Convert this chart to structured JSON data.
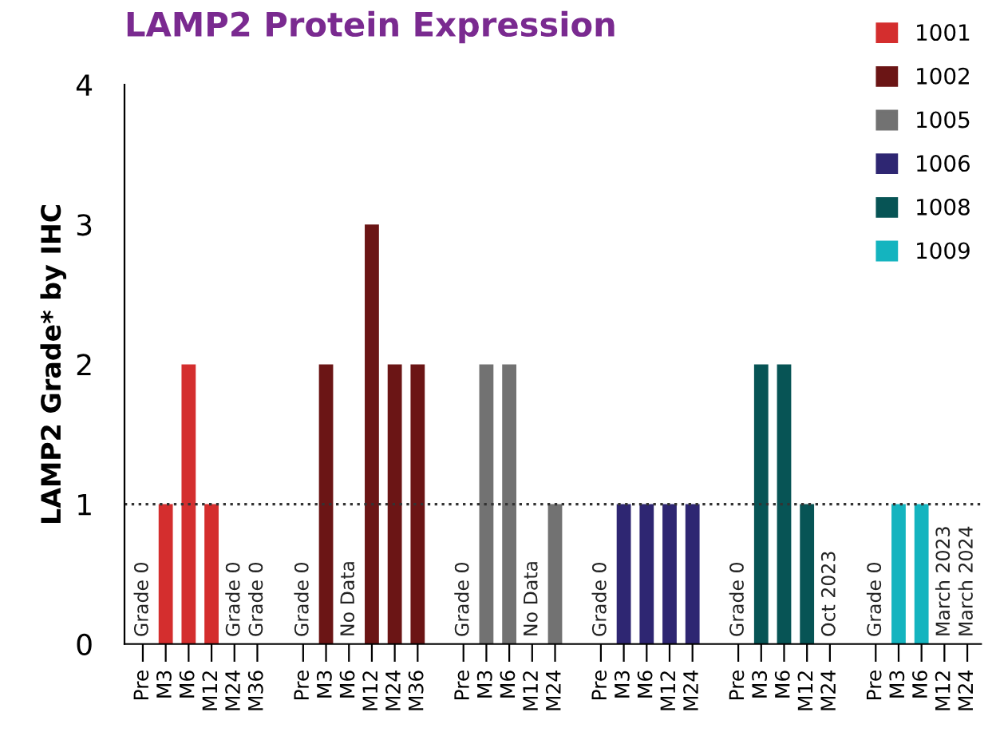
{
  "chart_data": {
    "type": "bar",
    "title": "LAMP2 Protein Expression",
    "ylabel": "LAMP2 Grade* by IHC",
    "categories": [
      "Pre",
      "M3",
      "M6",
      "M12",
      "M24",
      "M36",
      null,
      "Pre",
      "M3",
      "M6",
      "M12",
      "M24",
      "M36",
      null,
      "Pre",
      "M3",
      "M6",
      "M12",
      "M24",
      null,
      "Pre",
      "M3",
      "M6",
      "M12",
      "M24",
      null,
      "Pre",
      "M3",
      "M6",
      "M12",
      "M24",
      null,
      "Pre",
      "M3",
      "M6",
      "M12",
      "M24"
    ],
    "series": [
      {
        "name": "1001",
        "color": "#d42e2e",
        "values": [
          0,
          1,
          2,
          1,
          0,
          0,
          null,
          null,
          null,
          null,
          null,
          null,
          null,
          null,
          null,
          null,
          null,
          null,
          null,
          null,
          null,
          null,
          null,
          null,
          null,
          null,
          null,
          null,
          null,
          null,
          null,
          null,
          null,
          null,
          null,
          null,
          null
        ],
        "value_labels": [
          "Grade 0",
          null,
          null,
          null,
          "Grade 0",
          "Grade 0",
          null,
          null,
          null,
          null,
          null,
          null,
          null,
          null,
          null,
          null,
          null,
          null,
          null,
          null,
          null,
          null,
          null,
          null,
          null,
          null,
          null,
          null,
          null,
          null,
          null,
          null,
          null,
          null,
          null,
          null,
          null
        ]
      },
      {
        "name": "1002",
        "color": "#6b1515",
        "values": [
          null,
          null,
          null,
          null,
          null,
          null,
          null,
          0,
          2,
          null,
          3,
          2,
          2,
          null,
          null,
          null,
          null,
          null,
          null,
          null,
          null,
          null,
          null,
          null,
          null,
          null,
          null,
          null,
          null,
          null,
          null,
          null,
          null,
          null,
          null,
          null,
          null
        ],
        "value_labels": [
          null,
          null,
          null,
          null,
          null,
          null,
          null,
          "Grade 0",
          null,
          "No Data",
          null,
          null,
          null,
          null,
          null,
          null,
          null,
          null,
          null,
          null,
          null,
          null,
          null,
          null,
          null,
          null,
          null,
          null,
          null,
          null,
          null,
          null,
          null,
          null,
          null,
          null,
          null
        ]
      },
      {
        "name": "1005",
        "color": "#727272",
        "values": [
          null,
          null,
          null,
          null,
          null,
          null,
          null,
          null,
          null,
          null,
          null,
          null,
          null,
          null,
          0,
          2,
          2,
          null,
          1,
          null,
          null,
          null,
          null,
          null,
          null,
          null,
          null,
          null,
          null,
          null,
          null,
          null,
          null,
          null,
          null,
          null,
          null
        ],
        "value_labels": [
          null,
          null,
          null,
          null,
          null,
          null,
          null,
          null,
          null,
          null,
          null,
          null,
          null,
          null,
          "Grade 0",
          null,
          null,
          "No Data",
          null,
          null,
          null,
          null,
          null,
          null,
          null,
          null,
          null,
          null,
          null,
          null,
          null,
          null,
          null,
          null,
          null,
          null,
          null
        ]
      },
      {
        "name": "1006",
        "color": "#2e2672",
        "values": [
          null,
          null,
          null,
          null,
          null,
          null,
          null,
          null,
          null,
          null,
          null,
          null,
          null,
          null,
          null,
          null,
          null,
          null,
          null,
          null,
          0,
          1,
          1,
          1,
          1,
          null,
          null,
          null,
          null,
          null,
          null,
          null,
          null,
          null,
          null,
          null,
          null
        ],
        "value_labels": [
          null,
          null,
          null,
          null,
          null,
          null,
          null,
          null,
          null,
          null,
          null,
          null,
          null,
          null,
          null,
          null,
          null,
          null,
          null,
          null,
          "Grade 0",
          null,
          null,
          null,
          null,
          null,
          null,
          null,
          null,
          null,
          null,
          null,
          null,
          null,
          null,
          null,
          null
        ]
      },
      {
        "name": "1008",
        "color": "#075455",
        "values": [
          null,
          null,
          null,
          null,
          null,
          null,
          null,
          null,
          null,
          null,
          null,
          null,
          null,
          null,
          null,
          null,
          null,
          null,
          null,
          null,
          null,
          null,
          null,
          null,
          null,
          null,
          0,
          2,
          2,
          1,
          null,
          null,
          null,
          null,
          null,
          null,
          null
        ],
        "value_labels": [
          null,
          null,
          null,
          null,
          null,
          null,
          null,
          null,
          null,
          null,
          null,
          null,
          null,
          null,
          null,
          null,
          null,
          null,
          null,
          null,
          null,
          null,
          null,
          null,
          null,
          null,
          "Grade 0",
          null,
          null,
          null,
          "Oct 2023",
          null,
          null,
          null,
          null,
          null,
          null
        ]
      },
      {
        "name": "1009",
        "color": "#14b4bf",
        "values": [
          null,
          null,
          null,
          null,
          null,
          null,
          null,
          null,
          null,
          null,
          null,
          null,
          null,
          null,
          null,
          null,
          null,
          null,
          null,
          null,
          null,
          null,
          null,
          null,
          null,
          null,
          null,
          null,
          null,
          null,
          null,
          null,
          0,
          1,
          1,
          null,
          null
        ],
        "value_labels": [
          null,
          null,
          null,
          null,
          null,
          null,
          null,
          null,
          null,
          null,
          null,
          null,
          null,
          null,
          null,
          null,
          null,
          null,
          null,
          null,
          null,
          null,
          null,
          null,
          null,
          null,
          null,
          null,
          null,
          null,
          null,
          null,
          "Grade 0",
          null,
          null,
          "March 2023",
          "March 2024"
        ]
      }
    ],
    "ylim": [
      0,
      4
    ],
    "yticks": [
      0,
      1,
      2,
      3,
      4
    ],
    "ref_lines": [
      {
        "axis": "y",
        "value": 1,
        "color": "#333333",
        "line_style": "dotted"
      }
    ],
    "legend": "top right",
    "grid": false
  }
}
